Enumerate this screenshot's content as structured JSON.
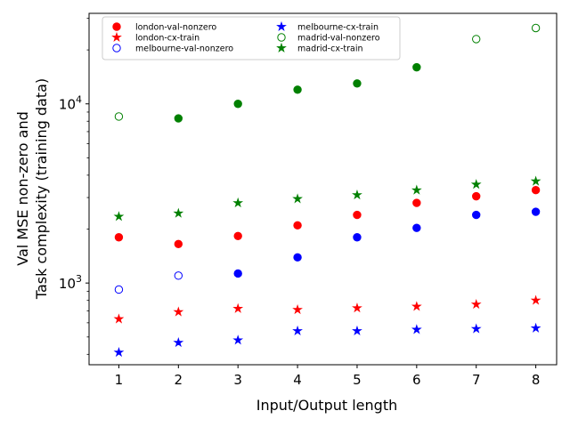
{
  "chart_data": {
    "type": "scatter",
    "xlabel": "Input/Output length",
    "ylabel_line1": "Val MSE non-zero and",
    "ylabel_line2": "Task complexity (training data)",
    "x_ticks": [
      1,
      2,
      3,
      4,
      5,
      6,
      7,
      8
    ],
    "xlim": [
      0.5,
      8.35
    ],
    "y_scale": "log",
    "ylim": [
      350,
      32000
    ],
    "y_major_ticks": [
      {
        "value": 1000,
        "base": "10",
        "exp": "3"
      },
      {
        "value": 10000,
        "base": "10",
        "exp": "4"
      }
    ],
    "y_minor_ticks": [
      400,
      500,
      600,
      700,
      800,
      900,
      2000,
      3000,
      4000,
      5000,
      6000,
      7000,
      8000,
      9000,
      20000,
      30000
    ],
    "grid": false,
    "legend_position": "top-left",
    "legend_columns": 2,
    "series": [
      {
        "name": "london-val-nonzero",
        "color": "#ff0000",
        "marker": "circle",
        "filled": true,
        "x": [
          1,
          2,
          3,
          4,
          5,
          6,
          7,
          8
        ],
        "y": [
          1800,
          1650,
          1830,
          2100,
          2400,
          2800,
          3050,
          3300
        ]
      },
      {
        "name": "london-cx-train",
        "color": "#ff0000",
        "marker": "star",
        "filled": true,
        "x": [
          1,
          2,
          3,
          4,
          5,
          6,
          7,
          8
        ],
        "y": [
          630,
          690,
          720,
          710,
          725,
          740,
          760,
          800
        ]
      },
      {
        "name": "melbourne-val-nonzero",
        "color": "#0000ff",
        "marker": "circle",
        "filled": false,
        "x": [
          1,
          2,
          3,
          4,
          5,
          6,
          7,
          8
        ],
        "y": [
          920,
          1100,
          1130,
          1390,
          1800,
          2030,
          2400,
          2500
        ]
      },
      {
        "name": "melbourne-cx-train",
        "color": "#0000ff",
        "marker": "star",
        "filled": true,
        "x": [
          1,
          2,
          3,
          4,
          5,
          6,
          7,
          8
        ],
        "y": [
          410,
          465,
          480,
          540,
          540,
          550,
          555,
          560
        ]
      },
      {
        "name": "madrid-val-nonzero",
        "color": "#008000",
        "marker": "circle",
        "filled": false,
        "x": [
          1,
          2,
          3,
          4,
          5,
          6,
          7,
          8
        ],
        "y": [
          8500,
          8300,
          10000,
          12000,
          13000,
          16000,
          23000,
          26500
        ]
      },
      {
        "name": "madrid-cx-train",
        "color": "#008000",
        "marker": "star",
        "filled": true,
        "x": [
          1,
          2,
          3,
          4,
          5,
          6,
          7,
          8
        ],
        "y": [
          2350,
          2450,
          2800,
          2950,
          3100,
          3300,
          3550,
          3700
        ]
      }
    ],
    "filled_per_point": {
      "melbourne-val-nonzero": [
        false,
        false,
        true,
        true,
        true,
        true,
        true,
        true
      ],
      "madrid-val-nonzero": [
        false,
        true,
        true,
        true,
        true,
        true,
        false,
        false
      ]
    }
  }
}
